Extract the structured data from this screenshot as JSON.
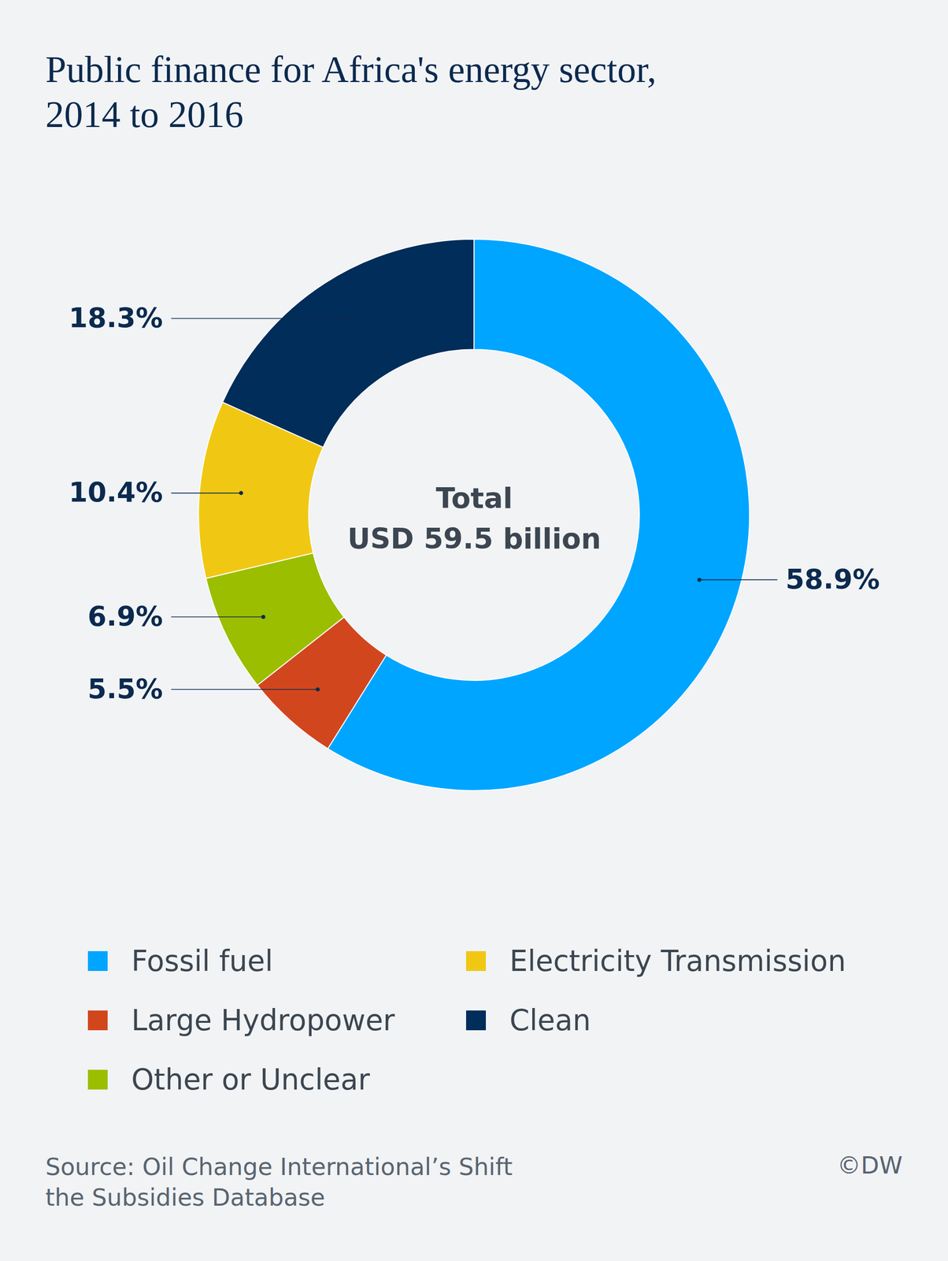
{
  "chart_data": {
    "type": "donut",
    "title": "Public finance for Africa's energy sector, 2014 to 2016",
    "center_text": [
      "Total",
      "USD 59.5 billion"
    ],
    "categories": [
      "Fossil fuel",
      "Large Hydropower",
      "Other or Unclear",
      "Electricity Transmission",
      "Clean"
    ],
    "values": [
      58.9,
      5.5,
      6.9,
      10.4,
      18.3
    ],
    "value_labels": [
      "58.9%",
      "5.5%",
      "6.9%",
      "10.4%",
      "18.3%"
    ],
    "colors": [
      "#00a5ff",
      "#d2461e",
      "#9bbe00",
      "#f0c814",
      "#002d5a"
    ],
    "data_labels": true,
    "legend": "bottom",
    "source": "Source: Oil Change International’s Shift the Subsidies Database",
    "credit": "©DW"
  }
}
